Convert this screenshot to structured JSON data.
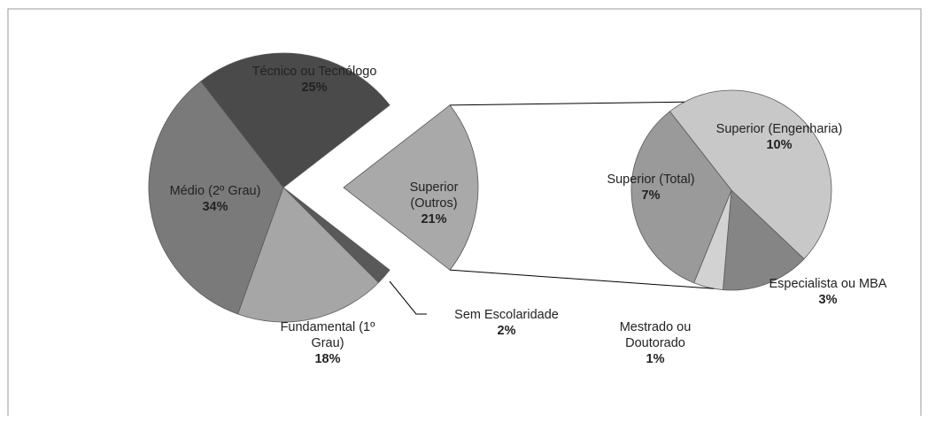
{
  "chart_data": {
    "type": "pie",
    "categories": [
      "Sem Escolaridade",
      "Fundamental (1º Grau)",
      "Médio (2º Grau)",
      "Técnico ou Tecnólogo",
      "Superior (Outros)"
    ],
    "values": [
      2,
      18,
      34,
      25,
      21
    ],
    "value_labels": [
      "2%",
      "18%",
      "34%",
      "25%",
      "21%"
    ],
    "colors": [
      "#595959",
      "#a6a6a6",
      "#7a7a7a",
      "#4a4a4a",
      "#a9a9a9"
    ],
    "split": {
      "categories": [
        "Superior (Engenharia)",
        "Especialista ou MBA",
        "Mestrado ou Doutorado",
        "Superior (Total)"
      ],
      "values": [
        10,
        3,
        1,
        7
      ],
      "value_labels": [
        "10%",
        "3%",
        "1%",
        "7%"
      ],
      "colors": [
        "#c8c8c8",
        "#858585",
        "#d2d2d2",
        "#9a9a9a"
      ]
    }
  }
}
